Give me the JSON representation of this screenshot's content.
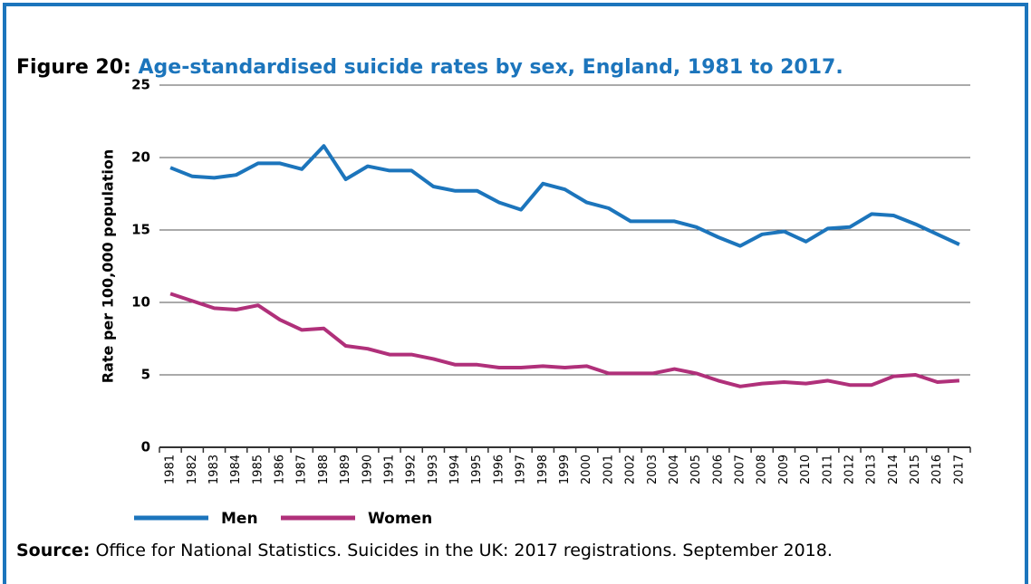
{
  "chart_data": {
    "type": "line",
    "title_label": "Figure 20:",
    "title": "Age-standardised suicide rates by sex, England, 1981 to 2017.",
    "y_label": "Rate per 100,000 population",
    "source_label": "Source:",
    "source": "Office for National Statistics. Suicides in the UK: 2017 registrations. September 2018.",
    "categories": [
      "1981",
      "1982",
      "1983",
      "1984",
      "1985",
      "1986",
      "1987",
      "1988",
      "1989",
      "1990",
      "1991",
      "1992",
      "1993",
      "1994",
      "1995",
      "1996",
      "1997",
      "1998",
      "1999",
      "2000",
      "2001",
      "2002",
      "2003",
      "2004",
      "2005",
      "2006",
      "2007",
      "2008",
      "2009",
      "2010",
      "2011",
      "2012",
      "2013",
      "2014",
      "2015",
      "2016",
      "2017"
    ],
    "series": [
      {
        "name": "Men",
        "color": "#1c75bc",
        "values": [
          19.3,
          18.7,
          18.6,
          18.8,
          19.6,
          19.6,
          19.2,
          20.8,
          18.5,
          19.4,
          19.1,
          19.1,
          18.0,
          17.7,
          17.7,
          16.9,
          16.4,
          18.2,
          17.8,
          16.9,
          16.5,
          15.6,
          15.6,
          15.6,
          15.2,
          14.5,
          13.9,
          14.7,
          14.9,
          14.2,
          15.1,
          15.2,
          16.1,
          16.0,
          15.4,
          14.7,
          14.0
        ]
      },
      {
        "name": "Women",
        "color": "#b0307a",
        "values": [
          10.6,
          10.1,
          9.6,
          9.5,
          9.8,
          8.8,
          8.1,
          8.2,
          7.0,
          6.8,
          6.4,
          6.4,
          6.1,
          5.7,
          5.7,
          5.5,
          5.5,
          5.6,
          5.5,
          5.6,
          5.1,
          5.1,
          5.1,
          5.4,
          5.1,
          4.6,
          4.2,
          4.4,
          4.5,
          4.4,
          4.6,
          4.3,
          4.3,
          4.9,
          5.0,
          4.5,
          4.6
        ]
      }
    ],
    "ylim": [
      0,
      25
    ],
    "yticks": [
      0,
      5,
      10,
      15,
      20,
      25
    ],
    "grid": true
  }
}
